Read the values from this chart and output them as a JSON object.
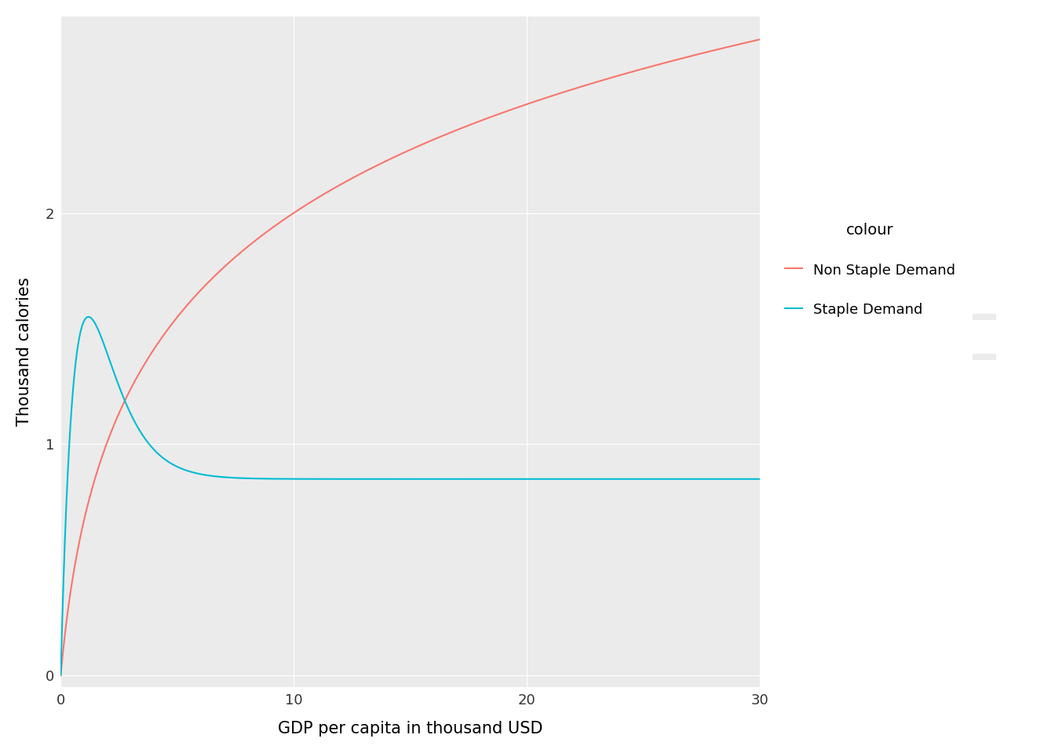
{
  "xlabel": "GDP per capita in thousand USD",
  "ylabel": "Thousand calories",
  "legend_title": "colour",
  "legend_entries": [
    "Non Staple Demand",
    "Staple Demand"
  ],
  "non_staple_color": "#F8766D",
  "staple_color": "#00BCD4",
  "background_color": "#EBEBEB",
  "panel_background": "#EBEBEB",
  "grid_color": "#FFFFFF",
  "xlim": [
    0,
    30
  ],
  "ylim": [
    -0.05,
    2.85
  ],
  "xticks": [
    0,
    10,
    20,
    30
  ],
  "yticks": [
    0,
    1,
    2
  ],
  "x_start": 0.001,
  "x_end": 30,
  "n_points": 3000,
  "ns_A": 1.0,
  "ns_B": 1.0,
  "staple_asymptote": 0.85,
  "staple_peak_x": 0.9,
  "staple_peak_y": 1.5,
  "line_width": 1.5
}
